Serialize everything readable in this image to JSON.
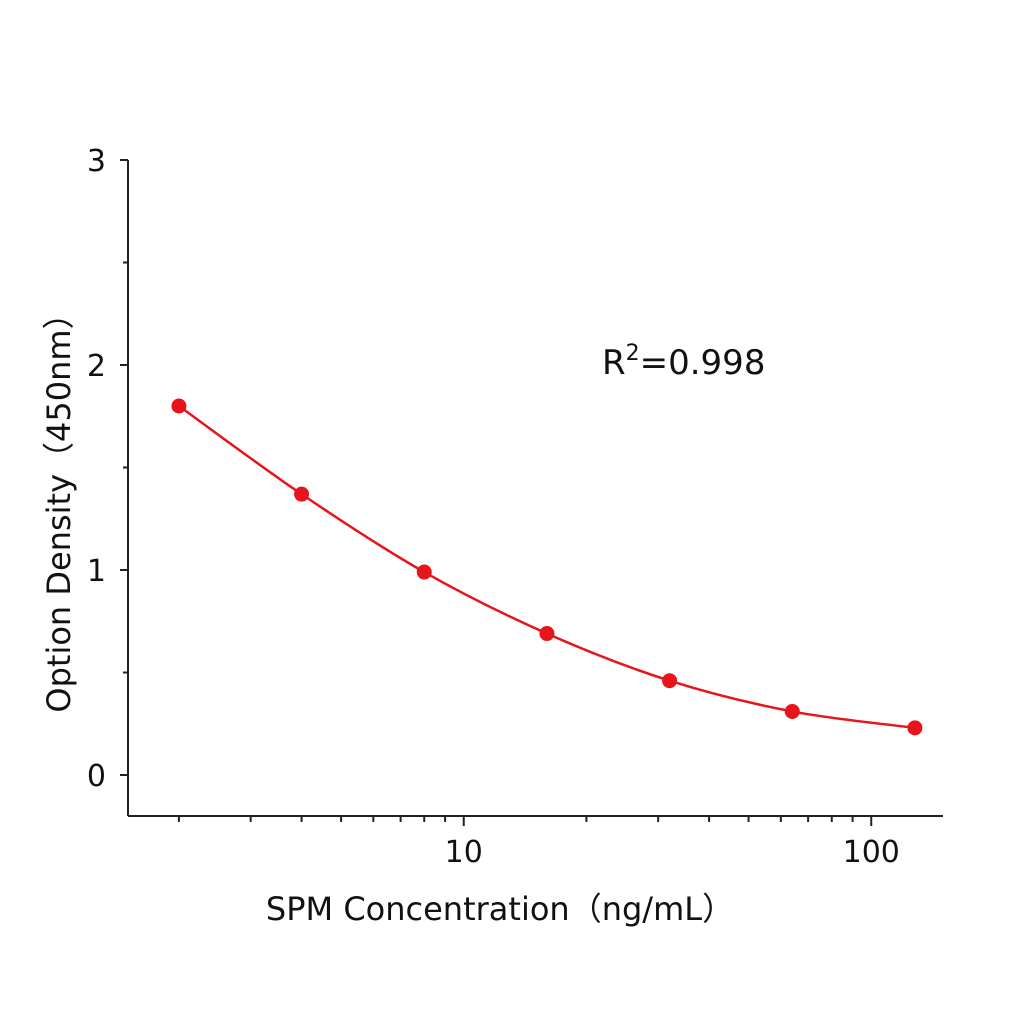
{
  "chart_data": {
    "type": "scatter",
    "title": "",
    "xlabel": "SPM Concentration（ng/mL）",
    "ylabel": "Option Density（450nm）",
    "x_scale": "log",
    "xlim": [
      1.5,
      150
    ],
    "ylim": [
      -0.2,
      3
    ],
    "x_ticks": [
      10,
      100
    ],
    "x_tick_labels": [
      "10",
      "100"
    ],
    "y_ticks": [
      0,
      1,
      2,
      3
    ],
    "y_tick_labels": [
      "0",
      "1",
      "2",
      "3"
    ],
    "grid": false,
    "series": [
      {
        "x": [
          2,
          4,
          8,
          16,
          32,
          64,
          128
        ],
        "y": [
          1.8,
          1.37,
          0.99,
          0.69,
          0.46,
          0.31,
          0.23
        ],
        "fit": "smooth curve"
      }
    ],
    "annotation": {
      "prefix": "R",
      "superscript": "2",
      "suffix": "=0.998"
    },
    "colors": {
      "series": "#e8141b",
      "axis": "#222222"
    }
  }
}
